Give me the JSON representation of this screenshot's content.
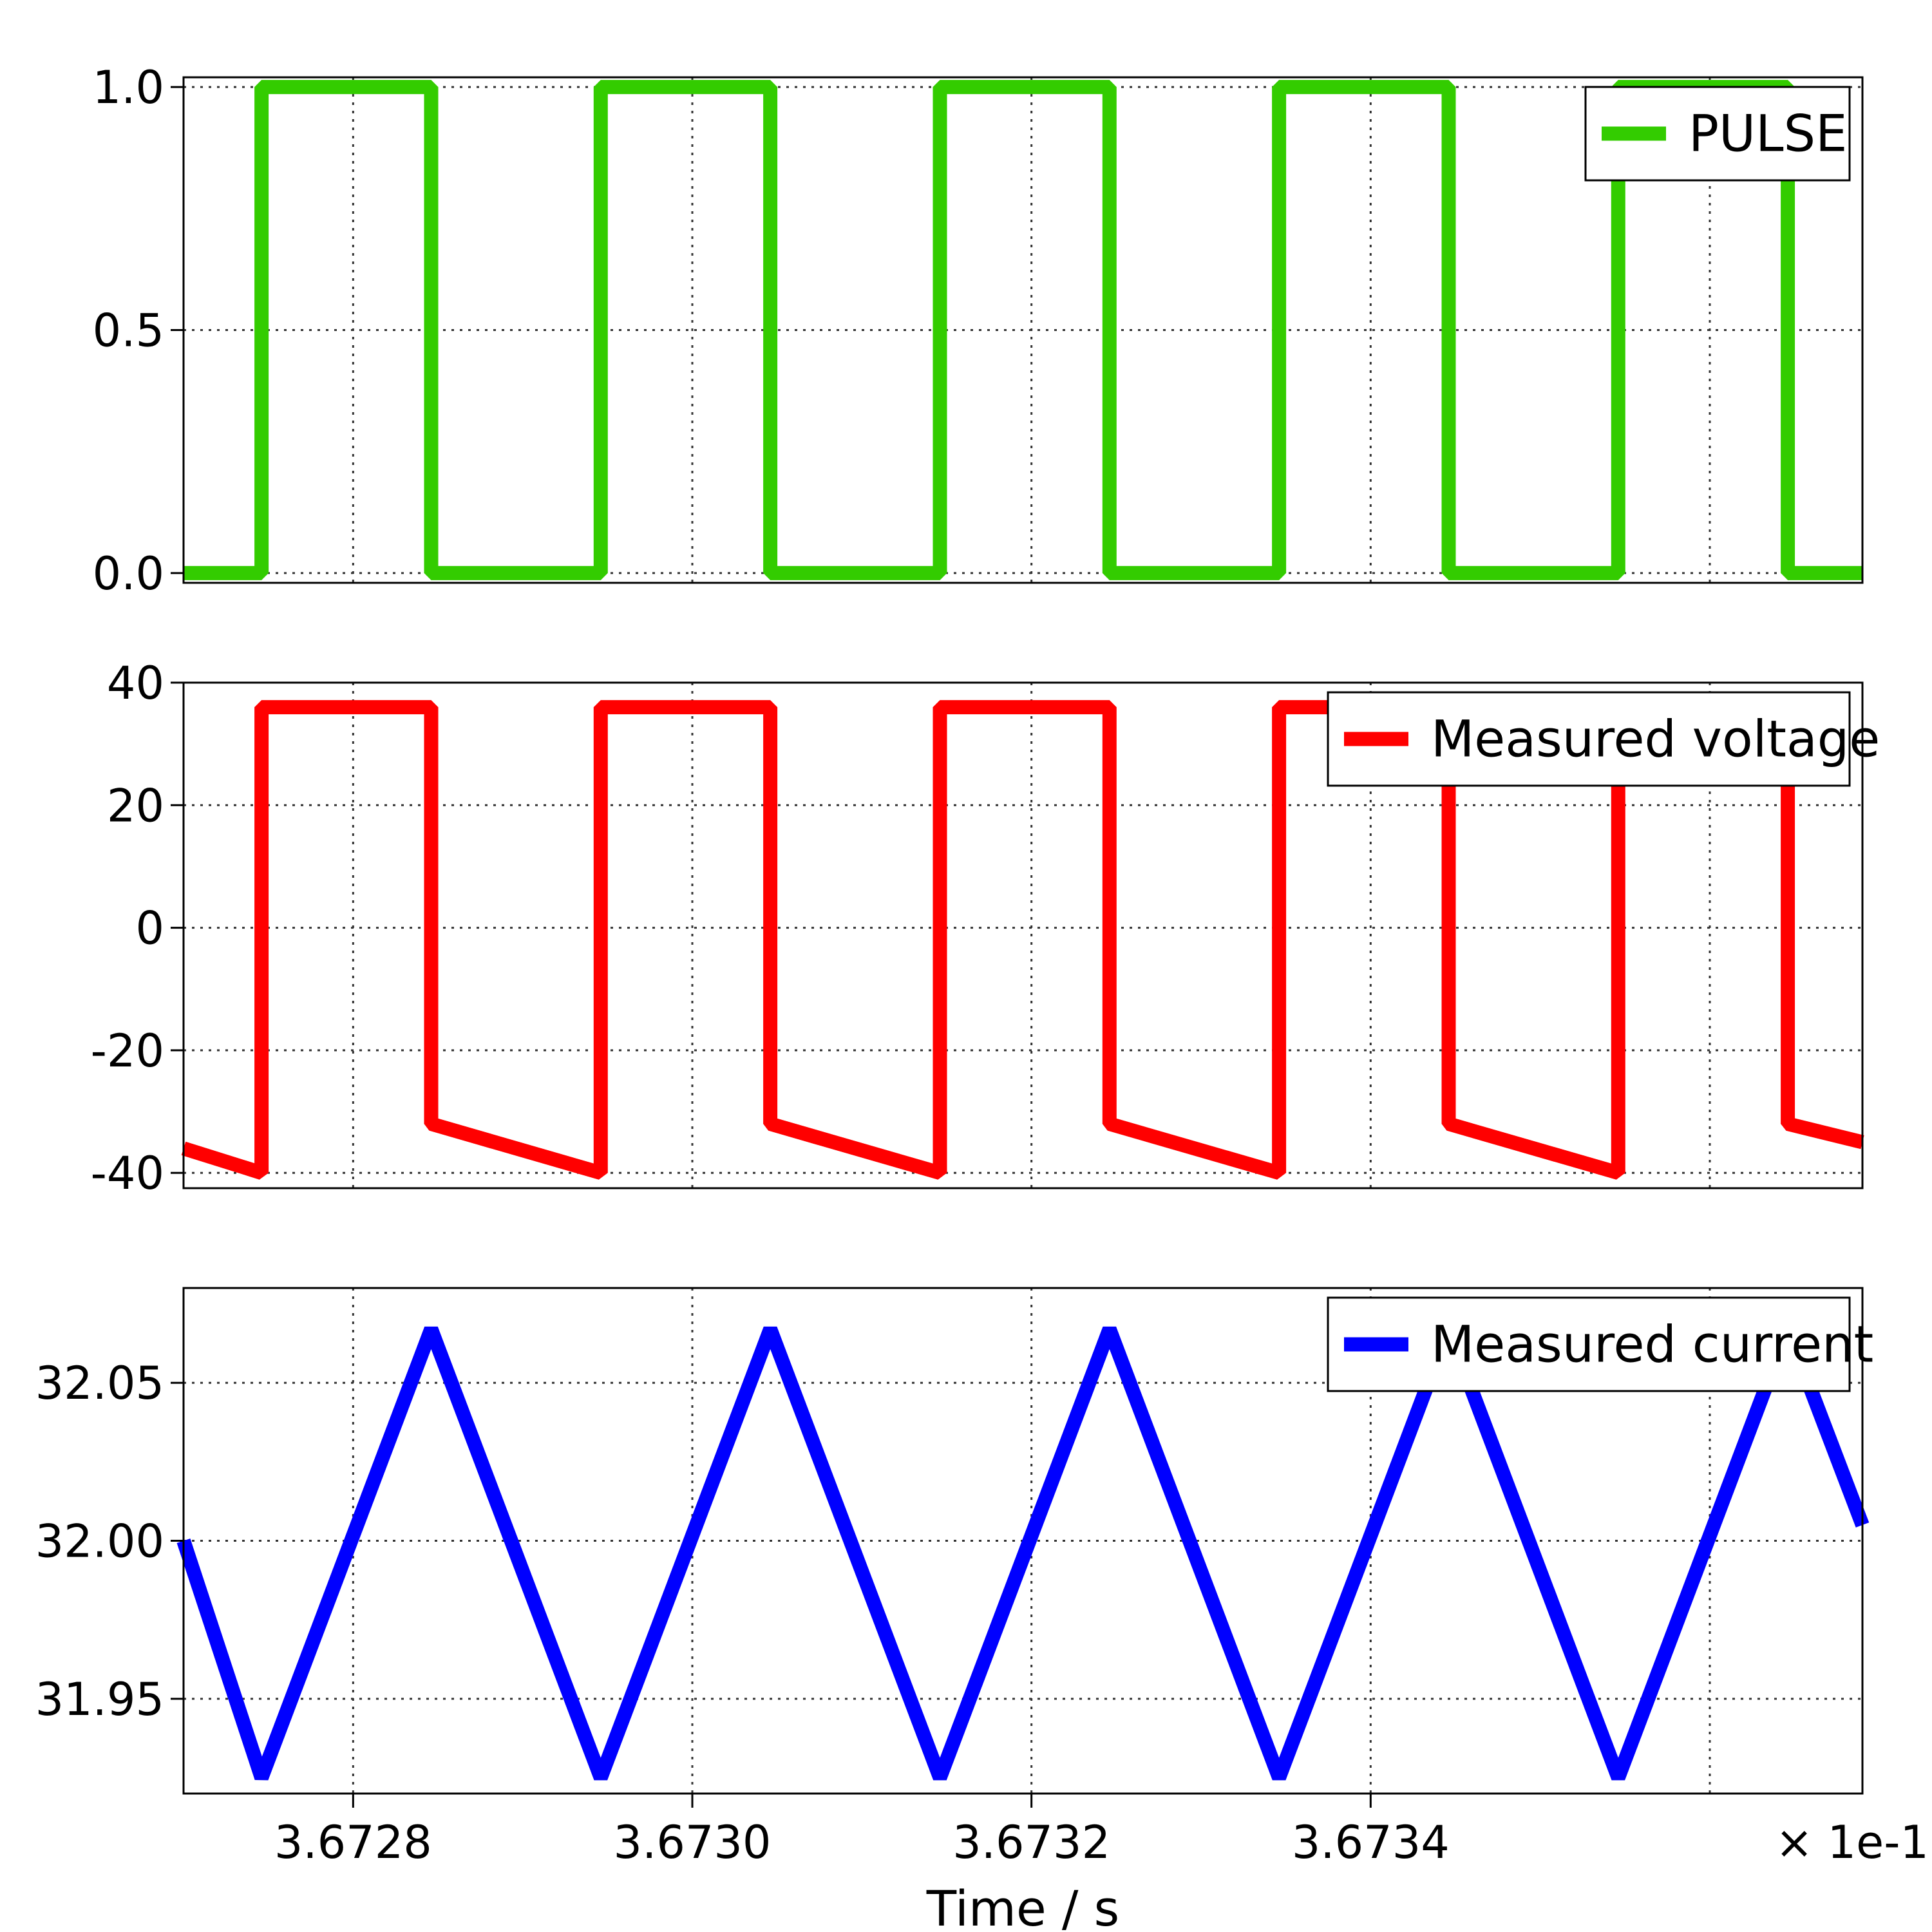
{
  "chart_data": [
    {
      "type": "line",
      "series": [
        {
          "name": "PULSE",
          "color": "#33cc00",
          "x": [
            36727.0,
            36727.46,
            36727.46,
            36728.46,
            36728.46,
            36729.46,
            36729.46,
            36730.46,
            36730.46,
            36731.46,
            36731.46,
            36732.46,
            36732.46,
            36733.46,
            36733.46,
            36734.46,
            36734.46,
            36735.46,
            36735.46,
            36736.46,
            36736.46,
            36736.9
          ],
          "y": [
            0,
            0,
            1,
            1,
            0,
            0,
            1,
            1,
            0,
            0,
            1,
            1,
            0,
            0,
            1,
            1,
            0,
            0,
            1,
            1,
            0,
            0
          ]
        }
      ],
      "yticks": [
        "0.0",
        "0.5",
        "1.0"
      ],
      "ytick_values": [
        0.0,
        0.5,
        1.0
      ],
      "ylim": [
        -0.02,
        1.02
      ],
      "legend": "top-right",
      "grid": true
    },
    {
      "type": "line",
      "series": [
        {
          "name": "Measured voltage",
          "color": "#ff0000",
          "x": [
            36727.0,
            36727.46,
            36727.46,
            36728.46,
            36728.46,
            36729.46,
            36729.46,
            36730.46,
            36730.46,
            36731.46,
            36731.46,
            36732.46,
            36732.46,
            36733.46,
            36733.46,
            36734.46,
            36734.46,
            36735.46,
            36735.46,
            36736.46,
            36736.46,
            36736.9
          ],
          "y": [
            -36,
            -40,
            36,
            36,
            -32,
            -40,
            36,
            36,
            -32,
            -40,
            36,
            36,
            -32,
            -40,
            36,
            36,
            -32,
            -40,
            36,
            36,
            -32,
            -35
          ]
        }
      ],
      "yticks": [
        "-40",
        "-20",
        "0",
        "20",
        "40"
      ],
      "ytick_values": [
        -40,
        -20,
        0,
        20,
        40
      ],
      "ylim": [
        -42.5,
        40
      ],
      "legend": "top-right",
      "grid": true
    },
    {
      "type": "line",
      "series": [
        {
          "name": "Measured current",
          "color": "#0000ff",
          "x": [
            36727.0,
            36727.46,
            36728.46,
            36729.46,
            36730.46,
            36731.46,
            36732.46,
            36733.46,
            36734.46,
            36735.46,
            36736.46,
            36736.9
          ],
          "y": [
            32.0,
            31.925,
            32.067,
            31.925,
            32.067,
            31.925,
            32.067,
            31.925,
            32.067,
            31.925,
            32.067,
            32.005
          ]
        }
      ],
      "yticks": [
        "31.95",
        "32.00",
        "32.05"
      ],
      "ytick_values": [
        31.95,
        32.0,
        32.05
      ],
      "ylim": [
        31.92,
        32.08
      ],
      "legend": "top-right",
      "grid": true
    }
  ],
  "x_axis": {
    "xlim": [
      36727.0,
      36736.9
    ],
    "ticks": [
      "3.6728",
      "3.6730",
      "3.6732",
      "3.6734"
    ],
    "tick_values": [
      36728,
      36730,
      36732,
      36734
    ],
    "extra_grid_values": [
      36736
    ],
    "xlabel": "Time / s",
    "offset_label": "× 1e-1"
  }
}
